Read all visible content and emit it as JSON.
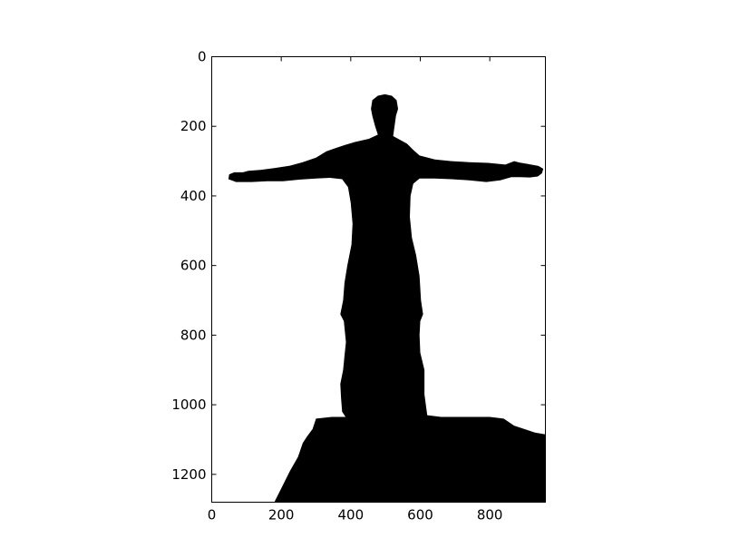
{
  "chart_data": {
    "type": "image",
    "colormap": "gray",
    "image_description_colors": {
      "foreground": "#000000",
      "background": "#ffffff"
    },
    "xlim": [
      0,
      960
    ],
    "ylim": [
      1280,
      0
    ],
    "y_inverted": true,
    "xticks": [
      0,
      200,
      400,
      600,
      800
    ],
    "yticks": [
      0,
      200,
      400,
      600,
      800,
      1000,
      1200
    ],
    "xtick_labels": [
      "0",
      "200",
      "400",
      "600",
      "800"
    ],
    "ytick_labels": [
      "0",
      "200",
      "400",
      "600",
      "800",
      "1000",
      "1200"
    ],
    "grid": false,
    "silhouette_outline": [
      [
        498,
        108
      ],
      [
        518,
        112
      ],
      [
        532,
        125
      ],
      [
        536,
        150
      ],
      [
        530,
        170
      ],
      [
        526,
        200
      ],
      [
        522,
        228
      ],
      [
        540,
        238
      ],
      [
        562,
        250
      ],
      [
        580,
        268
      ],
      [
        598,
        284
      ],
      [
        642,
        295
      ],
      [
        690,
        300
      ],
      [
        740,
        303
      ],
      [
        795,
        305
      ],
      [
        845,
        310
      ],
      [
        870,
        300
      ],
      [
        885,
        304
      ],
      [
        908,
        308
      ],
      [
        940,
        314
      ],
      [
        954,
        322
      ],
      [
        950,
        335
      ],
      [
        938,
        344
      ],
      [
        915,
        347
      ],
      [
        888,
        346
      ],
      [
        862,
        346
      ],
      [
        830,
        355
      ],
      [
        790,
        360
      ],
      [
        740,
        355
      ],
      [
        690,
        352
      ],
      [
        640,
        350
      ],
      [
        598,
        350
      ],
      [
        580,
        365
      ],
      [
        572,
        400
      ],
      [
        570,
        460
      ],
      [
        576,
        520
      ],
      [
        588,
        570
      ],
      [
        598,
        630
      ],
      [
        602,
        700
      ],
      [
        608,
        740
      ],
      [
        600,
        760
      ],
      [
        598,
        800
      ],
      [
        600,
        850
      ],
      [
        612,
        900
      ],
      [
        612,
        970
      ],
      [
        620,
        1030
      ],
      [
        660,
        1035
      ],
      [
        700,
        1035
      ],
      [
        750,
        1035
      ],
      [
        800,
        1035
      ],
      [
        840,
        1040
      ],
      [
        870,
        1060
      ],
      [
        930,
        1080
      ],
      [
        960,
        1085
      ],
      [
        960,
        1280
      ],
      [
        830,
        1280
      ],
      [
        700,
        1280
      ],
      [
        560,
        1280
      ],
      [
        420,
        1280
      ],
      [
        300,
        1280
      ],
      [
        180,
        1280
      ],
      [
        200,
        1240
      ],
      [
        225,
        1190
      ],
      [
        248,
        1150
      ],
      [
        262,
        1110
      ],
      [
        275,
        1090
      ],
      [
        290,
        1070
      ],
      [
        300,
        1040
      ],
      [
        345,
        1035
      ],
      [
        385,
        1035
      ],
      [
        375,
        1020
      ],
      [
        372,
        980
      ],
      [
        370,
        940
      ],
      [
        378,
        900
      ],
      [
        382,
        860
      ],
      [
        386,
        820
      ],
      [
        380,
        760
      ],
      [
        370,
        740
      ],
      [
        378,
        700
      ],
      [
        382,
        650
      ],
      [
        390,
        600
      ],
      [
        402,
        540
      ],
      [
        405,
        480
      ],
      [
        400,
        420
      ],
      [
        392,
        375
      ],
      [
        375,
        352
      ],
      [
        340,
        348
      ],
      [
        300,
        350
      ],
      [
        255,
        353
      ],
      [
        205,
        358
      ],
      [
        160,
        358
      ],
      [
        115,
        360
      ],
      [
        70,
        360
      ],
      [
        48,
        352
      ],
      [
        50,
        338
      ],
      [
        65,
        332
      ],
      [
        90,
        332
      ],
      [
        105,
        328
      ],
      [
        140,
        325
      ],
      [
        180,
        320
      ],
      [
        225,
        313
      ],
      [
        262,
        303
      ],
      [
        300,
        290
      ],
      [
        330,
        272
      ],
      [
        358,
        262
      ],
      [
        388,
        252
      ],
      [
        412,
        245
      ],
      [
        452,
        236
      ],
      [
        478,
        224
      ],
      [
        470,
        200
      ],
      [
        462,
        170
      ],
      [
        458,
        150
      ],
      [
        462,
        125
      ],
      [
        478,
        112
      ]
    ]
  }
}
